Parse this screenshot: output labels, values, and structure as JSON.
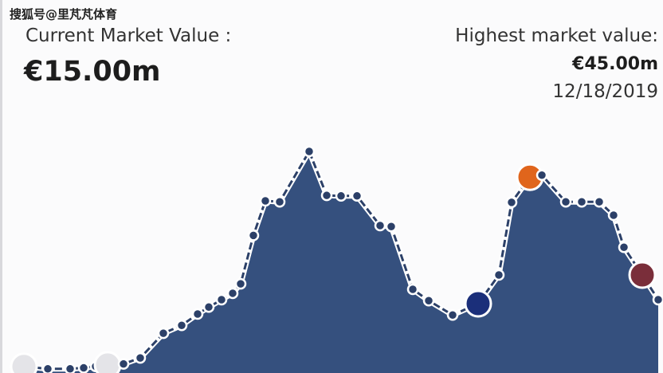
{
  "watermark": "搜狐号@里芃芃体育",
  "current": {
    "label": "Current Market Value :",
    "value": "€15.00m"
  },
  "highest": {
    "label": "Highest market value:",
    "value": "€45.00m",
    "date": "12/18/2019"
  },
  "colors": {
    "area": "#35507e",
    "line": "#ffffff",
    "point": "#2c4068"
  },
  "chart_data": {
    "type": "area",
    "unit": "€m",
    "grid": false,
    "values": [
      1.5,
      1,
      1,
      1.2,
      1.5,
      1.8,
      2,
      3.2,
      8.2,
      9.8,
      12.1,
      13.5,
      15,
      16.3,
      18.2,
      28,
      35,
      34.8,
      45,
      36.1,
      36,
      36,
      30,
      29.8,
      17.1,
      14.8,
      11.9,
      14.2,
      20,
      34.7,
      39.8,
      40.2,
      34.8,
      34.8,
      34.8,
      32.1,
      25.6,
      20,
      15
    ],
    "club_markers": [
      {
        "point": 0,
        "icon": "club-crest-icon"
      },
      {
        "point": 5,
        "icon": "club-crest-icon"
      },
      {
        "point": 27,
        "icon": "inter-milan-crest-icon"
      },
      {
        "point": 30,
        "icon": "club-crest-orange-icon"
      },
      {
        "point": 37,
        "icon": "club-crest-claret-icon"
      }
    ]
  }
}
